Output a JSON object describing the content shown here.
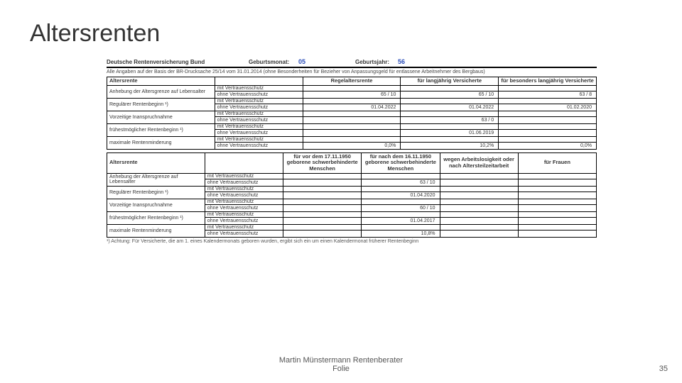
{
  "title": "Altersrenten",
  "header": {
    "org": "Deutsche Rentenversicherung Bund",
    "month_label": "Geburtsmonat:",
    "month_value": "05",
    "year_label": "Geburtsjahr:",
    "year_value": "56"
  },
  "note": "Alle Angaben auf der Basis der BR-Drucksache 25/14 vom 31.01.2014 (ohne Besonderheiten für Bezieher von Anpassungsgeld für entlassene Arbeitnehmer des Bergbaus)",
  "table1": {
    "head": [
      "Altersrente",
      "",
      "Regelaltersrente",
      "für langjährig Versicherte",
      "für besonders langjährig Versicherte"
    ],
    "rows": [
      {
        "label": "Anhebung der Altersgrenze auf Lebensalter",
        "sub1": "mit Vertrauensschutz",
        "v1": [
          "",
          "",
          ""
        ],
        "sub2": "ohne Vertrauensschutz",
        "v2": [
          "65 / 10",
          "65 / 10",
          "63 / 8"
        ]
      },
      {
        "label": "Regulärer Rentenbeginn ¹)",
        "sub1": "mit Vertrauensschutz",
        "v1": [
          "",
          "",
          ""
        ],
        "sub2": "ohne Vertrauensschutz",
        "v2": [
          "01.04.2022",
          "01.04.2022",
          "01.02.2020"
        ]
      },
      {
        "label": "Vorzeitige Inanspruchnahme",
        "sub1": "mit Vertrauensschutz",
        "v1": [
          "",
          "",
          ""
        ],
        "sub2": "ohne Vertrauensschutz",
        "v2": [
          "",
          "63 / 0",
          ""
        ]
      },
      {
        "label": "frühestmöglicher Rentenbeginn ¹)",
        "sub1": "mit Vertrauensschutz",
        "v1": [
          "",
          "",
          ""
        ],
        "sub2": "ohne Vertrauensschutz",
        "v2": [
          "",
          "01.06.2019",
          ""
        ]
      },
      {
        "label": "maximale Rentenminderung",
        "sub1": "mit Vertrauensschutz",
        "v1": [
          "",
          "",
          ""
        ],
        "sub2": "ohne Vertrauensschutz",
        "v2": [
          "0,0%",
          "10,2%",
          "0,0%"
        ]
      }
    ]
  },
  "table2": {
    "head": [
      "Altersrente",
      "",
      "für vor dem 17.11.1950 geborene schwerbehinderte Menschen",
      "für nach dem 16.11.1950 geborene schwerbehinderte Menschen",
      "wegen Arbeitslosigkeit oder nach Altersteilzeitarbeit",
      "für Frauen"
    ],
    "rows": [
      {
        "label": "Anhebung der Altersgrenze auf Lebensalter",
        "sub1": "mit Vertrauensschutz",
        "v1": [
          "",
          "",
          "",
          ""
        ],
        "sub2": "ohne Vertrauensschutz",
        "v2": [
          "",
          "63 / 10",
          "",
          ""
        ]
      },
      {
        "label": "Regulärer Rentenbeginn ¹)",
        "sub1": "mit Vertrauensschutz",
        "v1": [
          "",
          "",
          "",
          ""
        ],
        "sub2": "ohne Vertrauensschutz",
        "v2": [
          "",
          "01.04.2020",
          "",
          ""
        ]
      },
      {
        "label": "Vorzeitige Inanspruchnahme",
        "sub1": "mit Vertrauensschutz",
        "v1": [
          "",
          "",
          "",
          ""
        ],
        "sub2": "ohne Vertrauensschutz",
        "v2": [
          "",
          "60 / 10",
          "",
          ""
        ]
      },
      {
        "label": "frühestmöglicher Rentenbeginn ¹)",
        "sub1": "mit Vertrauensschutz",
        "v1": [
          "",
          "",
          "",
          ""
        ],
        "sub2": "ohne Vertrauensschutz",
        "v2": [
          "",
          "01.04.2017",
          "",
          ""
        ]
      },
      {
        "label": "maximale Rentenminderung",
        "sub1": "mit Vertrauensschutz",
        "v1": [
          "",
          "",
          "",
          ""
        ],
        "sub2": "ohne Vertrauensschutz",
        "v2": [
          "",
          "10,8%",
          "",
          ""
        ]
      }
    ]
  },
  "footnote": "¹) Achtung: Für Versicherte, die am 1. eines Kalendermonats geboren wurden, ergibt sich ein um einen Kalendermonat früherer Rentenbeginn",
  "footer": "Martin Münstermann Rentenberater\nFolie",
  "pagenum": "35",
  "layout": {
    "t1_cols": [
      "22%",
      "18%",
      "20%",
      "20%",
      "20%"
    ],
    "t2_cols": [
      "20%",
      "16%",
      "16%",
      "16%",
      "16%",
      "16%"
    ]
  }
}
